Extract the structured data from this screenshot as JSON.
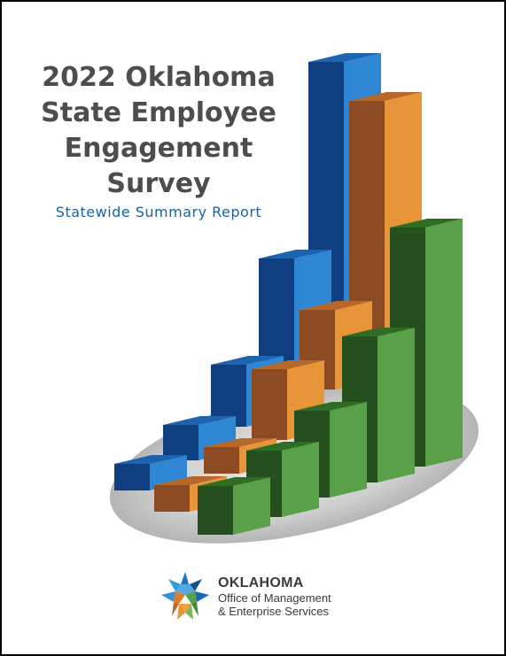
{
  "cover": {
    "title_lines": [
      "2022 Oklahoma",
      "State Employee",
      "Engagement",
      "Survey"
    ],
    "subtitle": "Statewide Summary Report"
  },
  "illustration": {
    "type": "decorative-3d-bar-graphic",
    "colors": {
      "blue": "#1565b8",
      "orange": "#e8953a",
      "green": "#5aa048"
    }
  },
  "logo": {
    "line1": "OKLAHOMA",
    "line2": "Office of Management",
    "line3": "& Enterprise Services",
    "icon": "oklahoma-star-mosaic-icon"
  }
}
